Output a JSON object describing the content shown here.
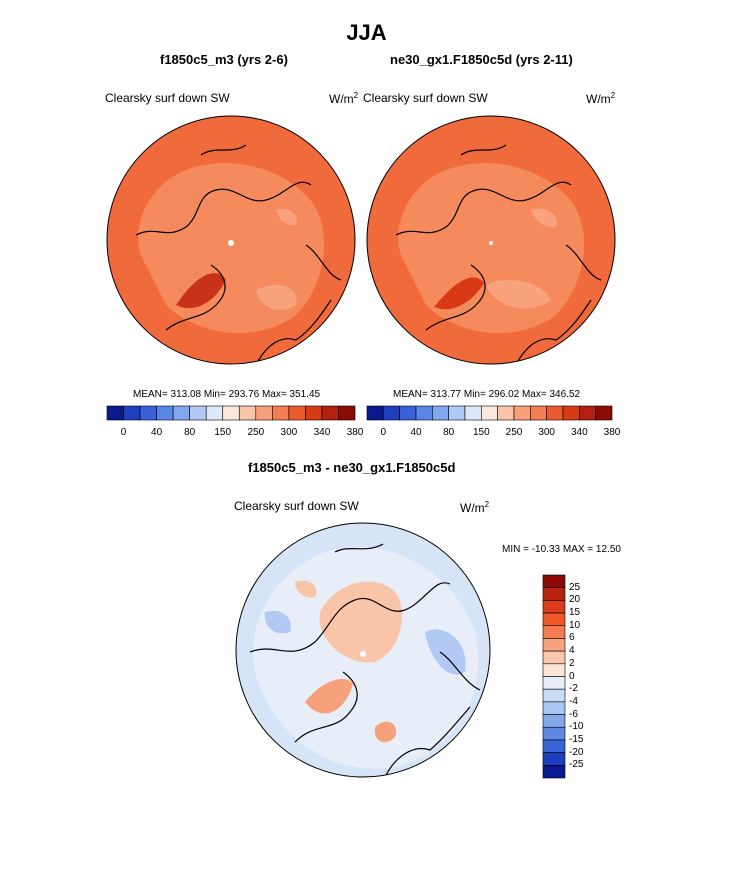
{
  "chart_data": {
    "type": "polar_contour_map",
    "title": "JJA",
    "panels": [
      {
        "id": "case",
        "subtitle": "f1850c5_m3 (yrs 2-6)",
        "variable_label": "Clearsky surf down SW",
        "units_base": "W/m",
        "units_exp": "2",
        "stats_text": "MEAN= 313.08  Min= 293.76  Max= 351.45",
        "mean": 313.08,
        "min": 293.76,
        "max": 351.45
      },
      {
        "id": "control",
        "subtitle": "ne30_gx1.F1850c5d (yrs 2-11)",
        "variable_label": "Clearsky surf down SW",
        "units_base": "W/m",
        "units_exp": "2",
        "stats_text": "MEAN= 313.77  Min= 296.02  Max= 346.52",
        "mean": 313.77,
        "min": 296.02,
        "max": 346.52
      }
    ],
    "shared_colorbar": {
      "colors": [
        "#0a1a8c",
        "#1f3fbf",
        "#3a62d8",
        "#5a86e6",
        "#84a8ef",
        "#b2c9f5",
        "#dde8fa",
        "#fde6da",
        "#f9c4a8",
        "#f6a17c",
        "#f27e56",
        "#ec5a30",
        "#d83a18",
        "#b42010",
        "#8a0c04"
      ],
      "tick_labels": [
        "0",
        "40",
        "80",
        "150",
        "250",
        "300",
        "340",
        "380"
      ]
    },
    "diff_panel": {
      "subtitle": "f1850c5_m3 - ne30_gx1.F1850c5d",
      "variable_label": "Clearsky surf down SW",
      "units_base": "W/m",
      "units_exp": "2",
      "minmax_text": "MIN = -10.33 MAX =  12.50",
      "min": -10.33,
      "max": 12.5,
      "colorbar": {
        "colors": [
          "#8b0a04",
          "#b82310",
          "#dc3c1c",
          "#f0582c",
          "#f47c52",
          "#f8a27e",
          "#fbc8ae",
          "#fde4d6",
          "#e8eef8",
          "#c9dbf5",
          "#a8c4f0",
          "#84a8ea",
          "#5e88e2",
          "#3864d6",
          "#1c40bc",
          "#0a1a90"
        ],
        "tick_labels": [
          "25",
          "20",
          "15",
          "10",
          "6",
          "4",
          "2",
          "0",
          "-2",
          "-4",
          "-6",
          "-10",
          "-15",
          "-20",
          "-25"
        ]
      }
    }
  }
}
